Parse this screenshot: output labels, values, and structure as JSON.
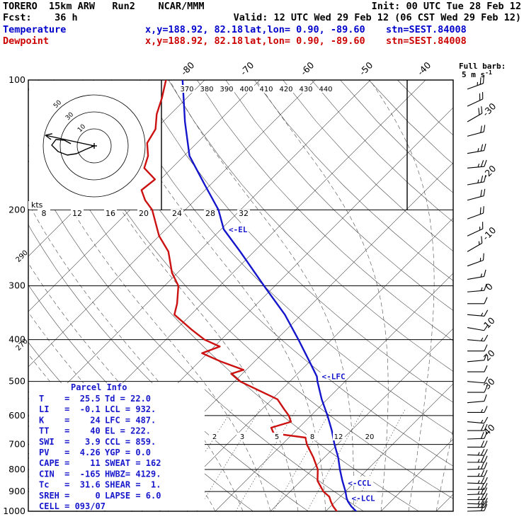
{
  "header": {
    "line1_left": "TORERO  15km ARW   Run2    NCAR/MMM",
    "line1_right": "Init: 00 UTC Tue 28 Feb 12",
    "line2_left": "Fcst:    36 h",
    "line2_right": "Valid: 12 UTC Wed 29 Feb 12 (06 CST Wed 29 Feb 12)",
    "temp_label": "Temperature",
    "temp_xy": "x,y=188.92, 82.18",
    "temp_latlon": "lat,lon= 0.90, -89.60",
    "temp_stn": "stn=SEST.84008",
    "dew_label": "Dewpoint",
    "dew_xy": "x,y=188.92, 82.18",
    "dew_latlon": "lat,lon= 0.90, -89.60",
    "dew_stn": "stn=SEST.84008"
  },
  "colors": {
    "temperature_trace": "#1515cc",
    "dewpoint_trace": "#cc1111",
    "header_blue": "#0000cc",
    "header_red": "#cc0000",
    "parcel_text": "#1818cc"
  },
  "barb_legend": {
    "line1": "Full barb:",
    "line2": "5 m s",
    "sup": "-1"
  },
  "hodograph": {
    "kts_label": "kts",
    "scale_labels": [
      "8",
      "12",
      "16",
      "20",
      "24",
      "28",
      "32"
    ],
    "ring_labels": [
      "10",
      "30",
      "50"
    ]
  },
  "axes": {
    "pressure_ticks": [
      100,
      200,
      300,
      400,
      500,
      600,
      700,
      800,
      900,
      1000
    ],
    "top_temp_ticks": [
      "-80",
      "-70",
      "-60",
      "-50",
      "-40"
    ],
    "right_temp_ticks": [
      "-30",
      "-20",
      "-10",
      "0",
      "10",
      "20",
      "30",
      "40"
    ],
    "theta_top_labels": [
      "370",
      "380",
      "390",
      "400",
      "410",
      "420",
      "430",
      "440"
    ],
    "theta_left_labels": [
      "290",
      "270"
    ],
    "mixing_ratio_labels": [
      "2",
      "3",
      "5",
      "8",
      "12",
      "20"
    ]
  },
  "parcel_info": {
    "title": "Parcel Info",
    "rows": [
      [
        "T    =  25.5",
        "Td = 22.0"
      ],
      [
        "LI   =  -0.1",
        "LCL = 932."
      ],
      [
        "K    =    24",
        "LFC = 487."
      ],
      [
        "TT   =    40",
        "EL = 222."
      ],
      [
        "SWI  =   3.9",
        "CCL = 859."
      ],
      [
        "PV   =  4.26",
        "YGP = 0.0"
      ],
      [
        "CAPE =    11",
        "SWEAT = 162"
      ],
      [
        "CIN  =  -165",
        "HWBZ= 4129."
      ],
      [
        "Tc   =  31.6",
        "SHEAR =  1."
      ],
      [
        "SREH =     0",
        "LAPSE = 6.0"
      ],
      [
        "CELL = 093/07",
        ""
      ]
    ]
  },
  "chart_data": {
    "type": "skew-t-log-p",
    "pressure_axis_hPa": [
      100,
      1000
    ],
    "temperature_axis_C": [
      -80,
      40
    ],
    "series": [
      {
        "name": "Temperature",
        "color": "#1515cc",
        "points": [
          {
            "p": 100,
            "t": -84
          },
          {
            "p": 125,
            "t": -76
          },
          {
            "p": 150,
            "t": -69
          },
          {
            "p": 175,
            "t": -61
          },
          {
            "p": 200,
            "t": -54
          },
          {
            "p": 222,
            "t": -49.5
          },
          {
            "p": 250,
            "t": -42.5
          },
          {
            "p": 275,
            "t": -37
          },
          {
            "p": 300,
            "t": -32
          },
          {
            "p": 350,
            "t": -23
          },
          {
            "p": 400,
            "t": -16
          },
          {
            "p": 450,
            "t": -10
          },
          {
            "p": 487,
            "t": -6
          },
          {
            "p": 500,
            "t": -5
          },
          {
            "p": 550,
            "t": -1
          },
          {
            "p": 600,
            "t": 3
          },
          {
            "p": 650,
            "t": 6.5
          },
          {
            "p": 700,
            "t": 9.5
          },
          {
            "p": 750,
            "t": 12.5
          },
          {
            "p": 800,
            "t": 15
          },
          {
            "p": 850,
            "t": 17.5
          },
          {
            "p": 900,
            "t": 20
          },
          {
            "p": 932,
            "t": 21.4
          },
          {
            "p": 950,
            "t": 22.3
          },
          {
            "p": 975,
            "t": 23.8
          },
          {
            "p": 1000,
            "t": 25.5
          }
        ]
      },
      {
        "name": "Dewpoint",
        "color": "#cc1111",
        "points": [
          {
            "p": 100,
            "t": -87
          },
          {
            "p": 110,
            "t": -84.5
          },
          {
            "p": 120,
            "t": -82.5
          },
          {
            "p": 130,
            "t": -80
          },
          {
            "p": 140,
            "t": -79
          },
          {
            "p": 150,
            "t": -76.5
          },
          {
            "p": 160,
            "t": -75
          },
          {
            "p": 170,
            "t": -71
          },
          {
            "p": 180,
            "t": -71.5
          },
          {
            "p": 190,
            "t": -69
          },
          {
            "p": 200,
            "t": -66
          },
          {
            "p": 230,
            "t": -60
          },
          {
            "p": 250,
            "t": -55.5
          },
          {
            "p": 280,
            "t": -51
          },
          {
            "p": 300,
            "t": -47.5
          },
          {
            "p": 330,
            "t": -44.5
          },
          {
            "p": 350,
            "t": -43
          },
          {
            "p": 380,
            "t": -37
          },
          {
            "p": 400,
            "t": -33
          },
          {
            "p": 415,
            "t": -29
          },
          {
            "p": 430,
            "t": -31
          },
          {
            "p": 450,
            "t": -26
          },
          {
            "p": 470,
            "t": -20.5
          },
          {
            "p": 480,
            "t": -22
          },
          {
            "p": 500,
            "t": -19
          },
          {
            "p": 550,
            "t": -9
          },
          {
            "p": 580,
            "t": -6
          },
          {
            "p": 600,
            "t": -4
          },
          {
            "p": 620,
            "t": -2.5
          },
          {
            "p": 640,
            "t": -5
          },
          {
            "p": 660,
            "t": -3.5
          },
          {
            "p": 675,
            "t": 3
          },
          {
            "p": 700,
            "t": 4.5
          },
          {
            "p": 750,
            "t": 8
          },
          {
            "p": 800,
            "t": 11
          },
          {
            "p": 850,
            "t": 13
          },
          {
            "p": 900,
            "t": 16
          },
          {
            "p": 925,
            "t": 18
          },
          {
            "p": 950,
            "t": 19.2
          },
          {
            "p": 975,
            "t": 20.5
          },
          {
            "p": 1000,
            "t": 22
          }
        ]
      }
    ],
    "markers": [
      {
        "label": "<-EL",
        "pressure_hPa": 222
      },
      {
        "label": "<-LFC",
        "pressure_hPa": 487
      },
      {
        "label": "<-CCL",
        "pressure_hPa": 859
      },
      {
        "label": "<-LCL",
        "pressure_hPa": 932
      }
    ],
    "mixing_ratio_lines_gkg": [
      2,
      3,
      5,
      8,
      12,
      20
    ],
    "wind_barbs": [
      {
        "p": 105,
        "dir": 70,
        "spd": 13
      },
      {
        "p": 115,
        "dir": 65,
        "spd": 10
      },
      {
        "p": 125,
        "dir": 60,
        "spd": 9
      },
      {
        "p": 135,
        "dir": 75,
        "spd": 10
      },
      {
        "p": 148,
        "dir": 80,
        "spd": 12
      },
      {
        "p": 160,
        "dir": 85,
        "spd": 13
      },
      {
        "p": 175,
        "dir": 80,
        "spd": 12
      },
      {
        "p": 190,
        "dir": 75,
        "spd": 10
      },
      {
        "p": 210,
        "dir": 70,
        "spd": 9
      },
      {
        "p": 230,
        "dir": 65,
        "spd": 8
      },
      {
        "p": 250,
        "dir": 60,
        "spd": 8
      },
      {
        "p": 270,
        "dir": 70,
        "spd": 7
      },
      {
        "p": 290,
        "dir": 80,
        "spd": 8
      },
      {
        "p": 310,
        "dir": 85,
        "spd": 7
      },
      {
        "p": 330,
        "dir": 90,
        "spd": 6
      },
      {
        "p": 350,
        "dir": 95,
        "spd": 7
      },
      {
        "p": 375,
        "dir": 100,
        "spd": 6
      },
      {
        "p": 400,
        "dir": 95,
        "spd": 7
      },
      {
        "p": 425,
        "dir": 90,
        "spd": 6
      },
      {
        "p": 450,
        "dir": 85,
        "spd": 5
      },
      {
        "p": 475,
        "dir": 90,
        "spd": 5
      },
      {
        "p": 500,
        "dir": 95,
        "spd": 6
      },
      {
        "p": 530,
        "dir": 90,
        "spd": 5
      },
      {
        "p": 560,
        "dir": 85,
        "spd": 6
      },
      {
        "p": 590,
        "dir": 90,
        "spd": 7
      },
      {
        "p": 620,
        "dir": 95,
        "spd": 8
      },
      {
        "p": 650,
        "dir": 90,
        "spd": 9
      },
      {
        "p": 680,
        "dir": 88,
        "spd": 10
      },
      {
        "p": 710,
        "dir": 90,
        "spd": 11
      },
      {
        "p": 740,
        "dir": 92,
        "spd": 12
      },
      {
        "p": 770,
        "dir": 90,
        "spd": 12
      },
      {
        "p": 800,
        "dir": 88,
        "spd": 13
      },
      {
        "p": 830,
        "dir": 90,
        "spd": 12
      },
      {
        "p": 860,
        "dir": 92,
        "spd": 13
      },
      {
        "p": 890,
        "dir": 90,
        "spd": 12
      },
      {
        "p": 915,
        "dir": 88,
        "spd": 13
      },
      {
        "p": 940,
        "dir": 90,
        "spd": 12
      },
      {
        "p": 960,
        "dir": 92,
        "spd": 13
      },
      {
        "p": 980,
        "dir": 90,
        "spd": 12
      },
      {
        "p": 1000,
        "dir": 88,
        "spd": 10
      }
    ],
    "cell_motion": "093/07"
  }
}
